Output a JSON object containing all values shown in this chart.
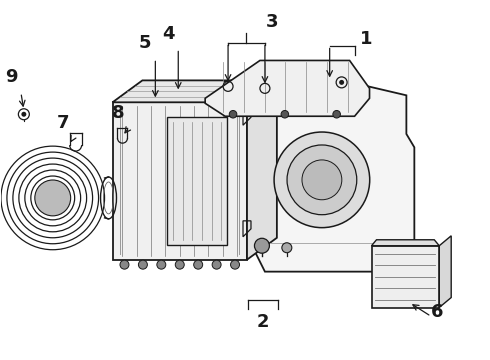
{
  "title": "",
  "bg_color": "#ffffff",
  "line_color": "#1a1a1a",
  "fig_width": 4.9,
  "fig_height": 3.6,
  "dpi": 100,
  "label_fontsize": 13
}
